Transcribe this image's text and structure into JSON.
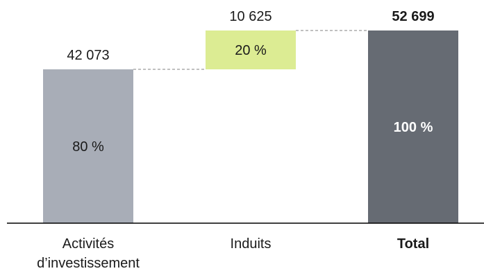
{
  "chart_data": {
    "type": "bar",
    "subtype": "waterfall",
    "title": "",
    "xlabel": "",
    "ylabel": "",
    "ylim": [
      0,
      52699
    ],
    "grid": false,
    "legend": "none",
    "categories": [
      [
        "Activités",
        "d’investissement"
      ],
      [
        "Induits"
      ],
      [
        "Total"
      ]
    ],
    "bars": [
      {
        "category": "Activités d’investissement",
        "start": 0,
        "end": 42073,
        "value_label": "42 073",
        "share_label": "80 %",
        "color": "#a8adb7",
        "bold": false,
        "inner_light": true
      },
      {
        "category": "Induits",
        "start": 42073,
        "end": 52698,
        "value_label": "10 625",
        "share_label": "20 %",
        "color": "#dcec93",
        "bold": false,
        "inner_light": true
      },
      {
        "category": "Total",
        "start": 0,
        "end": 52699,
        "value_label": "52 699",
        "share_label": "100 %",
        "color": "#666b73",
        "bold": true,
        "inner_light": false
      }
    ],
    "connector_color": "#808080"
  }
}
